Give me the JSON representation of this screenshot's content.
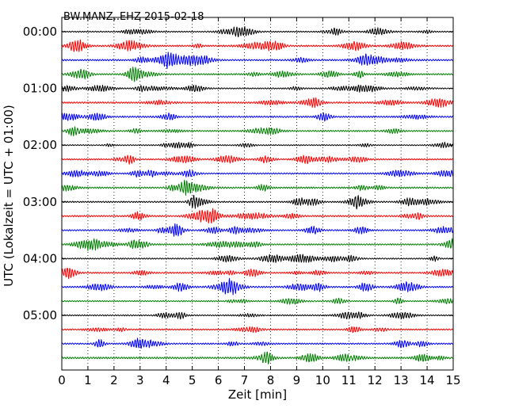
{
  "chart_data": {
    "type": "line",
    "title": "BW.MANZ..EHZ 2015-02-18",
    "xlabel": "Zeit  [min]",
    "ylabel": "UTC (Lokalzeit = UTC + 01:00)",
    "xlim": [
      0,
      15
    ],
    "x_ticks": [
      "0",
      "1",
      "2",
      "3",
      "4",
      "5",
      "6",
      "7",
      "8",
      "9",
      "10",
      "11",
      "12",
      "13",
      "14",
      "15"
    ],
    "y_ticks": [
      "00:00",
      "01:00",
      "02:00",
      "03:00",
      "04:00",
      "05:00"
    ],
    "trace_colors": [
      "#000000",
      "#ff0000",
      "#0000ff",
      "#008000"
    ],
    "grid": "vertical dotted at each minute",
    "trace_count": 24,
    "trace_interval_minutes": 15,
    "series": [
      {
        "start": "00:00",
        "amplitude": 0.35
      },
      {
        "start": "00:15",
        "amplitude": 0.45
      },
      {
        "start": "00:30",
        "amplitude": 0.45
      },
      {
        "start": "00:45",
        "amplitude": 0.4
      },
      {
        "start": "01:00",
        "amplitude": 0.35
      },
      {
        "start": "01:15",
        "amplitude": 0.45
      },
      {
        "start": "01:30",
        "amplitude": 0.45
      },
      {
        "start": "01:45",
        "amplitude": 0.4
      },
      {
        "start": "02:00",
        "amplitude": 0.3
      },
      {
        "start": "02:15",
        "amplitude": 0.4
      },
      {
        "start": "02:30",
        "amplitude": 0.4
      },
      {
        "start": "02:45",
        "amplitude": 0.45
      },
      {
        "start": "03:00",
        "amplitude": 0.4
      },
      {
        "start": "03:15",
        "amplitude": 0.45
      },
      {
        "start": "03:30",
        "amplitude": 0.4
      },
      {
        "start": "03:45",
        "amplitude": 0.4
      },
      {
        "start": "04:00",
        "amplitude": 0.35
      },
      {
        "start": "04:15",
        "amplitude": 0.4
      },
      {
        "start": "04:30",
        "amplitude": 0.45
      },
      {
        "start": "04:45",
        "amplitude": 0.35
      },
      {
        "start": "05:00",
        "amplitude": 0.35
      },
      {
        "start": "05:15",
        "amplitude": 0.4
      },
      {
        "start": "05:30",
        "amplitude": 0.4
      },
      {
        "start": "05:45",
        "amplitude": 0.5
      }
    ]
  }
}
